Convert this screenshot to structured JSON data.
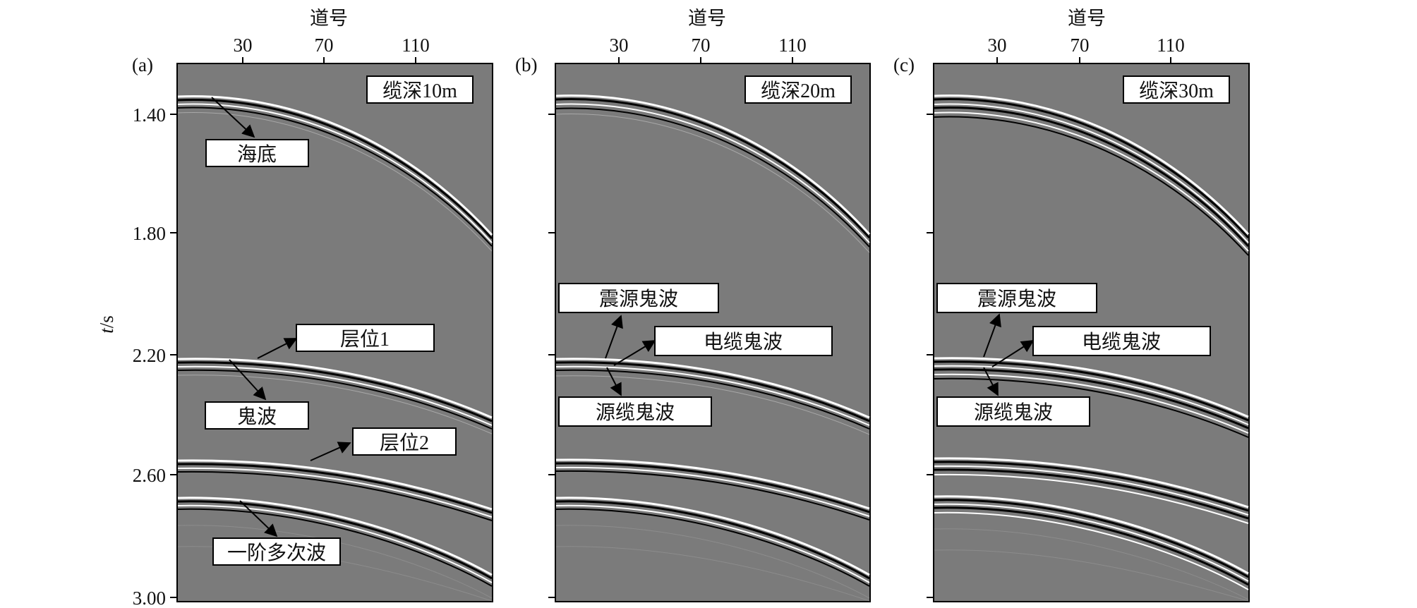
{
  "figure": {
    "xaxis_title": "道号",
    "x_ticks": [
      "30",
      "70",
      "110"
    ],
    "y_label_italic": "t",
    "y_label_rest": "/s",
    "y_ticks": [
      "1.40",
      "1.80",
      "2.20",
      "2.60",
      "3.00"
    ],
    "panel_bg": "#7b7b7b",
    "panels": [
      {
        "tag": "(a)",
        "depth_label": "缆深10m",
        "annotations": [
          "海底",
          "层位1",
          "鬼波",
          "层位2",
          "一阶多次波"
        ]
      },
      {
        "tag": "(b)",
        "depth_label": "缆深20m",
        "annotations": [
          "震源鬼波",
          "电缆鬼波",
          "源缆鬼波"
        ]
      },
      {
        "tag": "(c)",
        "depth_label": "缆深30m",
        "annotations": [
          "震源鬼波",
          "电缆鬼波",
          "源缆鬼波"
        ]
      }
    ]
  }
}
